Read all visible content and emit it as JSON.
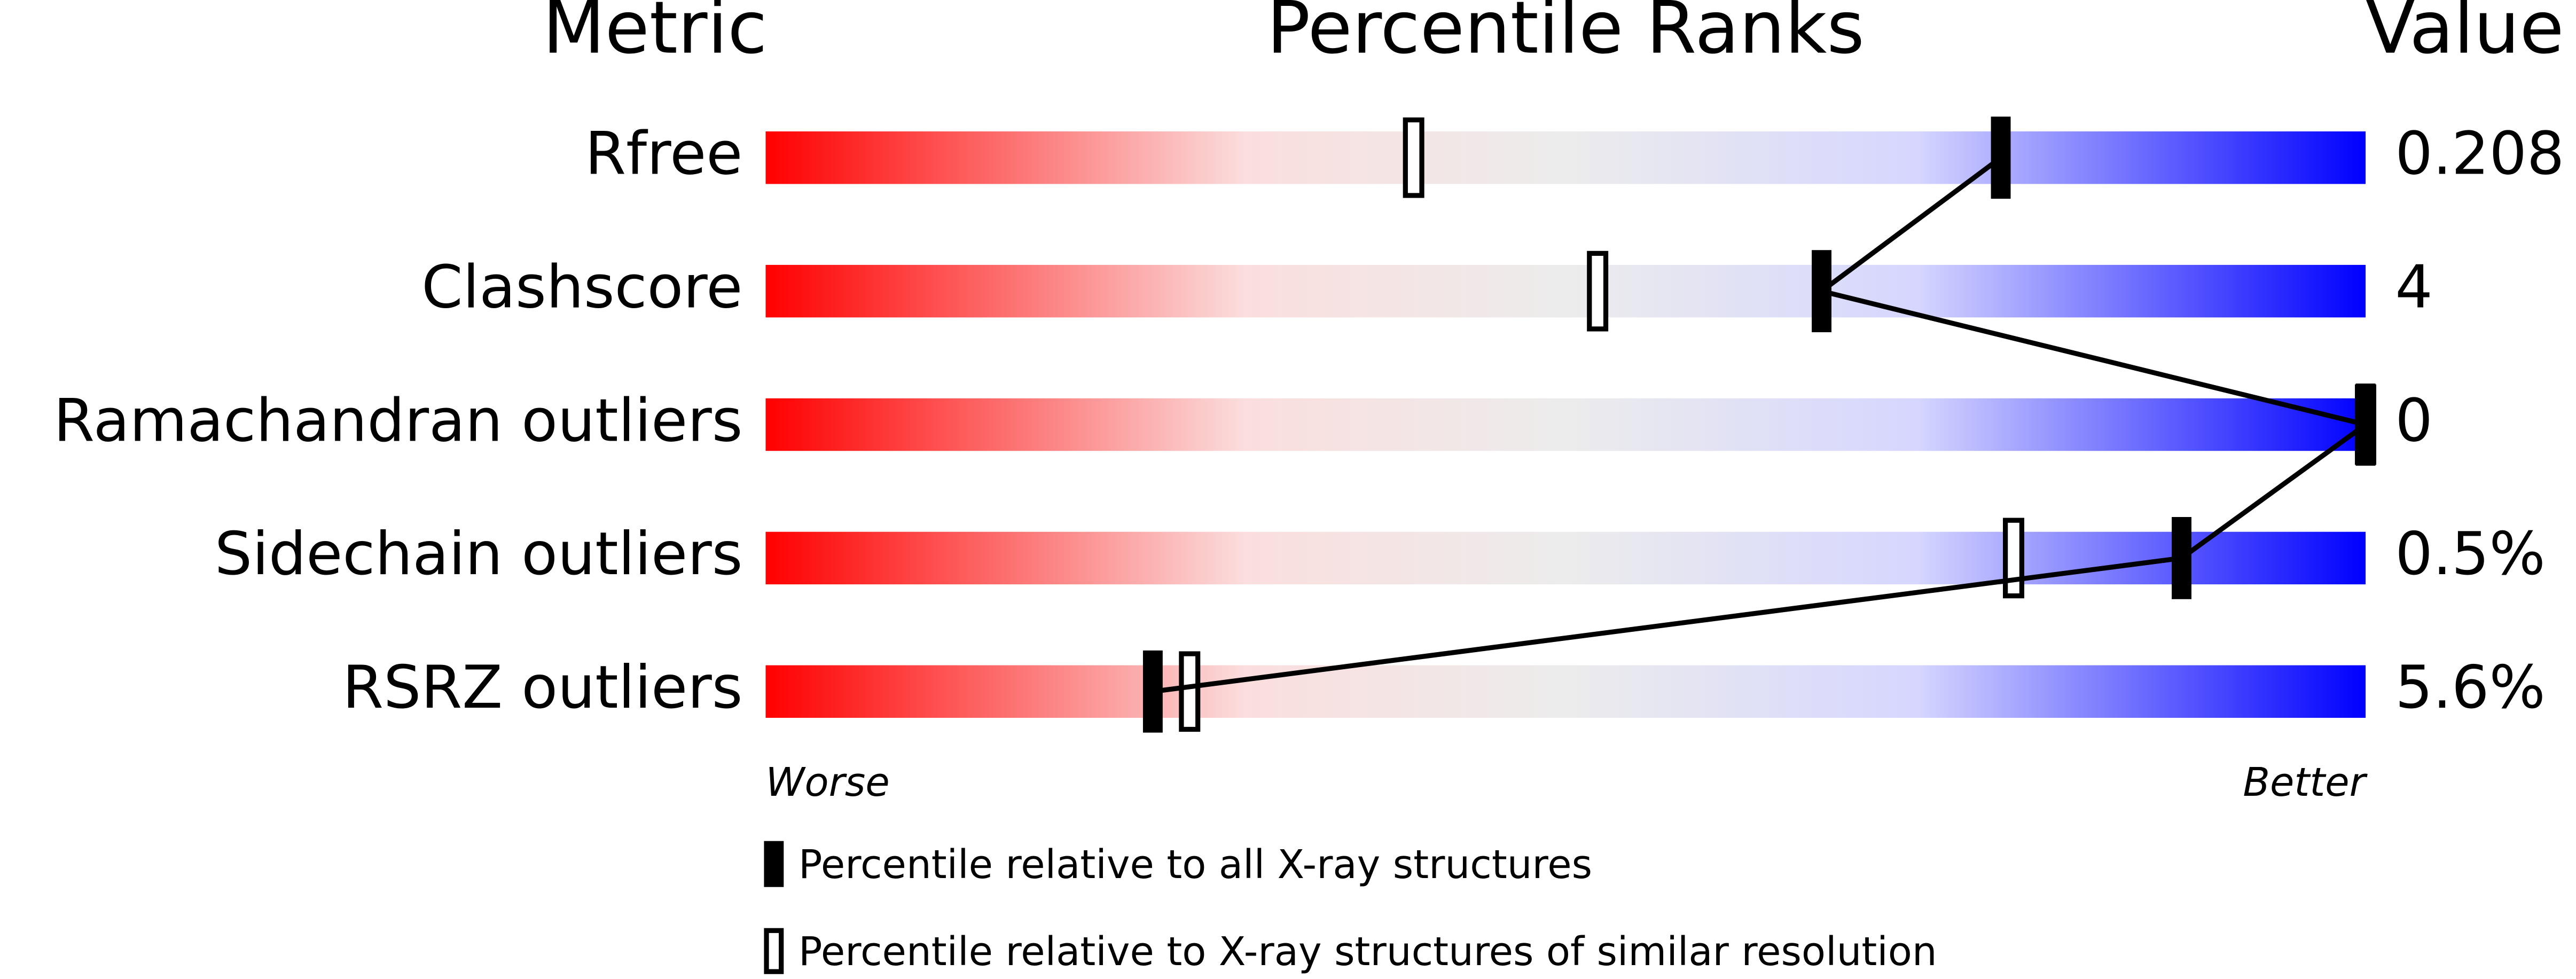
{
  "chart_data": {
    "type": "percentile-slider",
    "headers": {
      "metric": "Metric",
      "ranks": "Percentile Ranks",
      "value": "Value"
    },
    "categories": [
      "Rfree",
      "Clashscore",
      "Ramachandran outliers",
      "Sidechain outliers",
      "RSRZ outliers"
    ],
    "metric_values": [
      "0.208",
      "4",
      "0",
      "0.5%",
      "5.6%"
    ],
    "series": [
      {
        "name": "Percentile relative to all X-ray structures",
        "style": "filled",
        "color": "#000000",
        "values": [
          77.2,
          66.0,
          100,
          88.5,
          24.2
        ]
      },
      {
        "name": "Percentile relative to X-ray structures of similar resolution",
        "style": "hollow",
        "color": "#000000",
        "values": [
          40.5,
          52.0,
          100,
          78.0,
          26.5
        ]
      }
    ],
    "xlim": [
      0,
      100
    ],
    "x_label_low": "Worse",
    "x_label_high": "Better"
  }
}
